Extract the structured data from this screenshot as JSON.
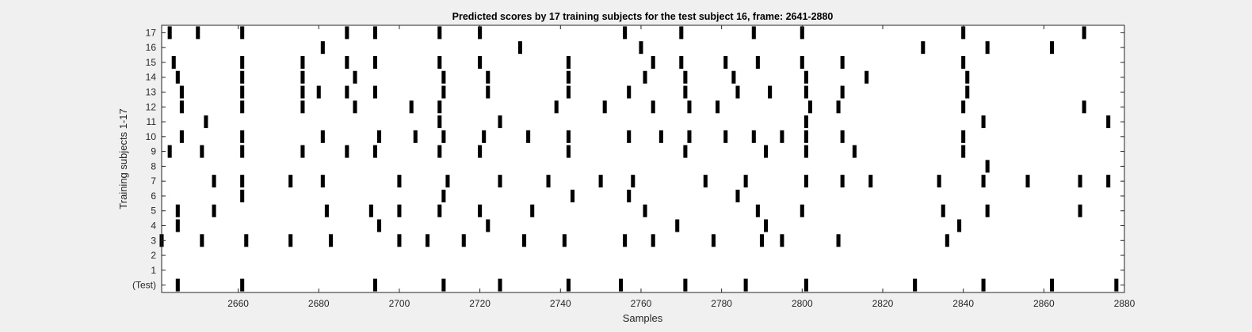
{
  "chart_data": {
    "type": "raster",
    "title": "Predicted scores by 17 training subjects for the test subject 16, frame: 2641-2880",
    "xlabel": "Samples",
    "ylabel": "Training subjects 1-17",
    "xlim": [
      2641,
      2880
    ],
    "xticks": [
      2660,
      2680,
      2700,
      2720,
      2740,
      2760,
      2780,
      2800,
      2820,
      2840,
      2860,
      2880
    ],
    "yticklabels": [
      "(Test)",
      "1",
      "2",
      "3",
      "4",
      "5",
      "6",
      "7",
      "8",
      "9",
      "10",
      "11",
      "12",
      "13",
      "14",
      "15",
      "16",
      "17"
    ],
    "mark_color": "#000000",
    "background_color": "#ffffff",
    "rows": [
      {
        "label": "(Test)",
        "events": [
          2645,
          2661,
          2694,
          2711,
          2725,
          2742,
          2755,
          2771,
          2786,
          2801,
          2828,
          2845,
          2862,
          2878
        ]
      },
      {
        "label": "1",
        "events": []
      },
      {
        "label": "2",
        "events": []
      },
      {
        "label": "3",
        "events": [
          2641,
          2651,
          2662,
          2673,
          2683,
          2700,
          2707,
          2716,
          2731,
          2741,
          2756,
          2763,
          2778,
          2790,
          2795,
          2809,
          2836
        ]
      },
      {
        "label": "4",
        "events": [
          2645,
          2695,
          2722,
          2769,
          2791,
          2839
        ]
      },
      {
        "label": "5",
        "events": [
          2645,
          2654,
          2682,
          2693,
          2700,
          2710,
          2720,
          2733,
          2761,
          2789,
          2800,
          2835,
          2846,
          2869
        ]
      },
      {
        "label": "6",
        "events": [
          2661,
          2711,
          2743,
          2757,
          2784
        ]
      },
      {
        "label": "7",
        "events": [
          2654,
          2661,
          2673,
          2681,
          2700,
          2712,
          2725,
          2737,
          2750,
          2758,
          2776,
          2786,
          2801,
          2810,
          2817,
          2834,
          2845,
          2856,
          2869,
          2876
        ]
      },
      {
        "label": "8",
        "events": [
          2846
        ]
      },
      {
        "label": "9",
        "events": [
          2643,
          2651,
          2661,
          2676,
          2687,
          2694,
          2710,
          2720,
          2742,
          2771,
          2791,
          2801,
          2813,
          2840
        ]
      },
      {
        "label": "10",
        "events": [
          2646,
          2661,
          2681,
          2695,
          2704,
          2711,
          2721,
          2732,
          2742,
          2757,
          2765,
          2772,
          2781,
          2788,
          2795,
          2801,
          2810,
          2840
        ]
      },
      {
        "label": "11",
        "events": [
          2652,
          2710,
          2725,
          2801,
          2845,
          2876
        ]
      },
      {
        "label": "12",
        "events": [
          2646,
          2661,
          2676,
          2689,
          2703,
          2710,
          2739,
          2751,
          2763,
          2772,
          2779,
          2802,
          2809,
          2840,
          2870
        ]
      },
      {
        "label": "13",
        "events": [
          2646,
          2661,
          2676,
          2680,
          2687,
          2694,
          2711,
          2722,
          2742,
          2757,
          2771,
          2784,
          2792,
          2801,
          2810,
          2841
        ]
      },
      {
        "label": "14",
        "events": [
          2645,
          2661,
          2676,
          2689,
          2711,
          2722,
          2742,
          2761,
          2771,
          2783,
          2801,
          2816,
          2841
        ]
      },
      {
        "label": "15",
        "events": [
          2644,
          2661,
          2676,
          2687,
          2694,
          2710,
          2720,
          2742,
          2763,
          2770,
          2781,
          2789,
          2800,
          2810,
          2840
        ]
      },
      {
        "label": "16",
        "events": [
          2681,
          2730,
          2760,
          2830,
          2846,
          2862
        ]
      },
      {
        "label": "17",
        "events": [
          2643,
          2650,
          2661,
          2687,
          2694,
          2710,
          2720,
          2756,
          2770,
          2788,
          2800,
          2840,
          2870
        ]
      }
    ]
  }
}
